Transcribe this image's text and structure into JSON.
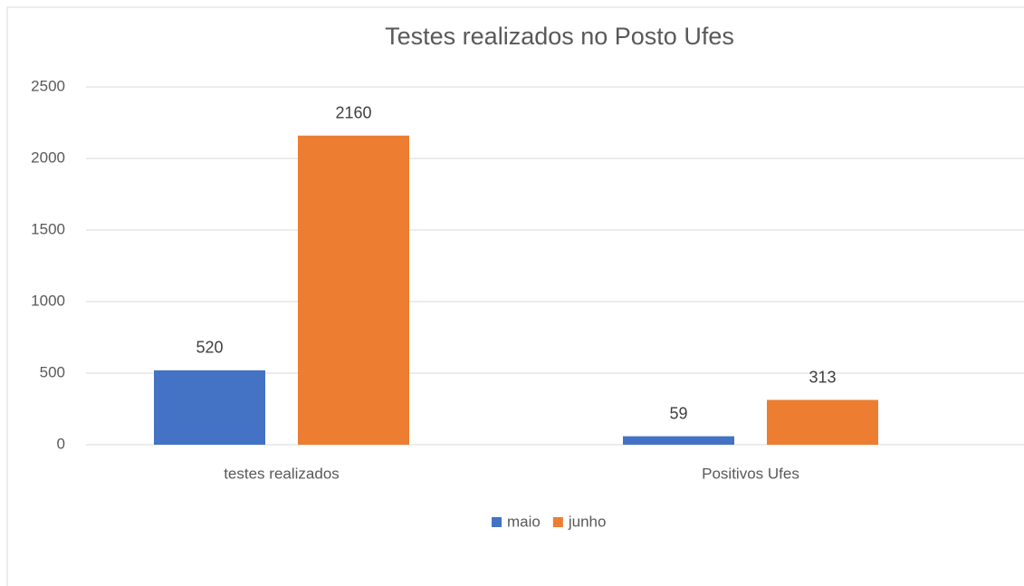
{
  "chart_data": {
    "type": "bar",
    "title": "Testes realizados no Posto Ufes",
    "categories": [
      "testes realizados",
      "Positivos Ufes"
    ],
    "series": [
      {
        "name": "maio",
        "color": "#4472c4",
        "values": [
          520,
          59
        ]
      },
      {
        "name": "junho",
        "color": "#ed7d31",
        "values": [
          2160,
          313
        ]
      }
    ],
    "ylim": [
      0,
      2500
    ],
    "yticks": [
      0,
      500,
      1000,
      1500,
      2000,
      2500
    ],
    "grid": true,
    "legend": "bottom"
  }
}
